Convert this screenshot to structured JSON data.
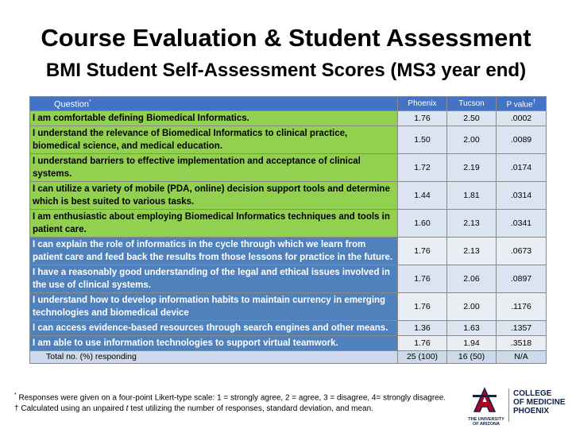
{
  "title": "Course Evaluation & Student Assessment",
  "subtitle": "BMI Student Self-Assessment Scores (MS3 year end)",
  "table": {
    "headers": {
      "question": "Question",
      "question_mark": "*",
      "phoenix": "Phoenix",
      "tucson": "Tucson",
      "pvalue": "P value",
      "pvalue_mark": "†"
    },
    "rows": [
      {
        "question": "I am comfortable defining Biomedical Informatics.",
        "phoenix": "1.76",
        "tucson": "2.50",
        "p": ".0002"
      },
      {
        "question": "I understand the relevance of Biomedical Informatics to clinical practice, biomedical science, and medical education.",
        "phoenix": "1.50",
        "tucson": "2.00",
        "p": ".0089"
      },
      {
        "question": "I understand barriers to effective implementation and acceptance of clinical systems.",
        "phoenix": "1.72",
        "tucson": "2.19",
        "p": ".0174"
      },
      {
        "question": "I can utilize a variety of mobile (PDA, online) decision support tools and determine which is best suited to various tasks.",
        "phoenix": "1.44",
        "tucson": "1.81",
        "p": ".0314"
      },
      {
        "question": "I am enthusiastic about employing Biomedical Informatics techniques and tools in patient care.",
        "phoenix": "1.60",
        "tucson": "2.13",
        "p": ".0341"
      },
      {
        "question": "I can explain the role of informatics in the cycle through which we learn from patient care and feed back the results from those lessons for practice in the future.",
        "phoenix": "1.76",
        "tucson": "2.13",
        "p": ".0673"
      },
      {
        "question": "I have a reasonably good understanding of the legal and ethical issues involved in the use of clinical systems.",
        "phoenix": "1.76",
        "tucson": "2.06",
        "p": ".0897"
      },
      {
        "question": "I understand how to develop information habits to maintain currency in emerging technologies and biomedical device",
        "phoenix": "1.76",
        "tucson": "2.00",
        "p": ".1176"
      },
      {
        "question": "I can access evidence-based resources through search engines and other means.",
        "phoenix": "1.36",
        "tucson": "1.63",
        "p": ".1357"
      },
      {
        "question": "I am able to use information technologies to support virtual teamwork.",
        "phoenix": "1.76",
        "tucson": "1.94",
        "p": ".3518"
      }
    ],
    "total": {
      "label": "Total no. (%) responding",
      "phoenix": "25 (100)",
      "tucson": "16 (50)",
      "p": "N/A"
    }
  },
  "footnotes": {
    "note1_mark": "*",
    "note1": " Responses were given on a four-point Likert-type scale: 1 = strongly agree, 2 = agree, 3 = disagree, 4= strongly disagree.",
    "note2_mark": "†",
    "note2_a": " Calculated using an unpaired ",
    "note2_t": "t",
    "note2_b": " test utilizing the number of responses, standard deviation, and mean."
  },
  "logo": {
    "university": "THE UNIVERSITY OF ARIZONA",
    "college": "COLLEGE\nOF MEDICINE\nPHOENIX",
    "colors": {
      "navy": "#0c234b",
      "red": "#ab0520"
    }
  }
}
